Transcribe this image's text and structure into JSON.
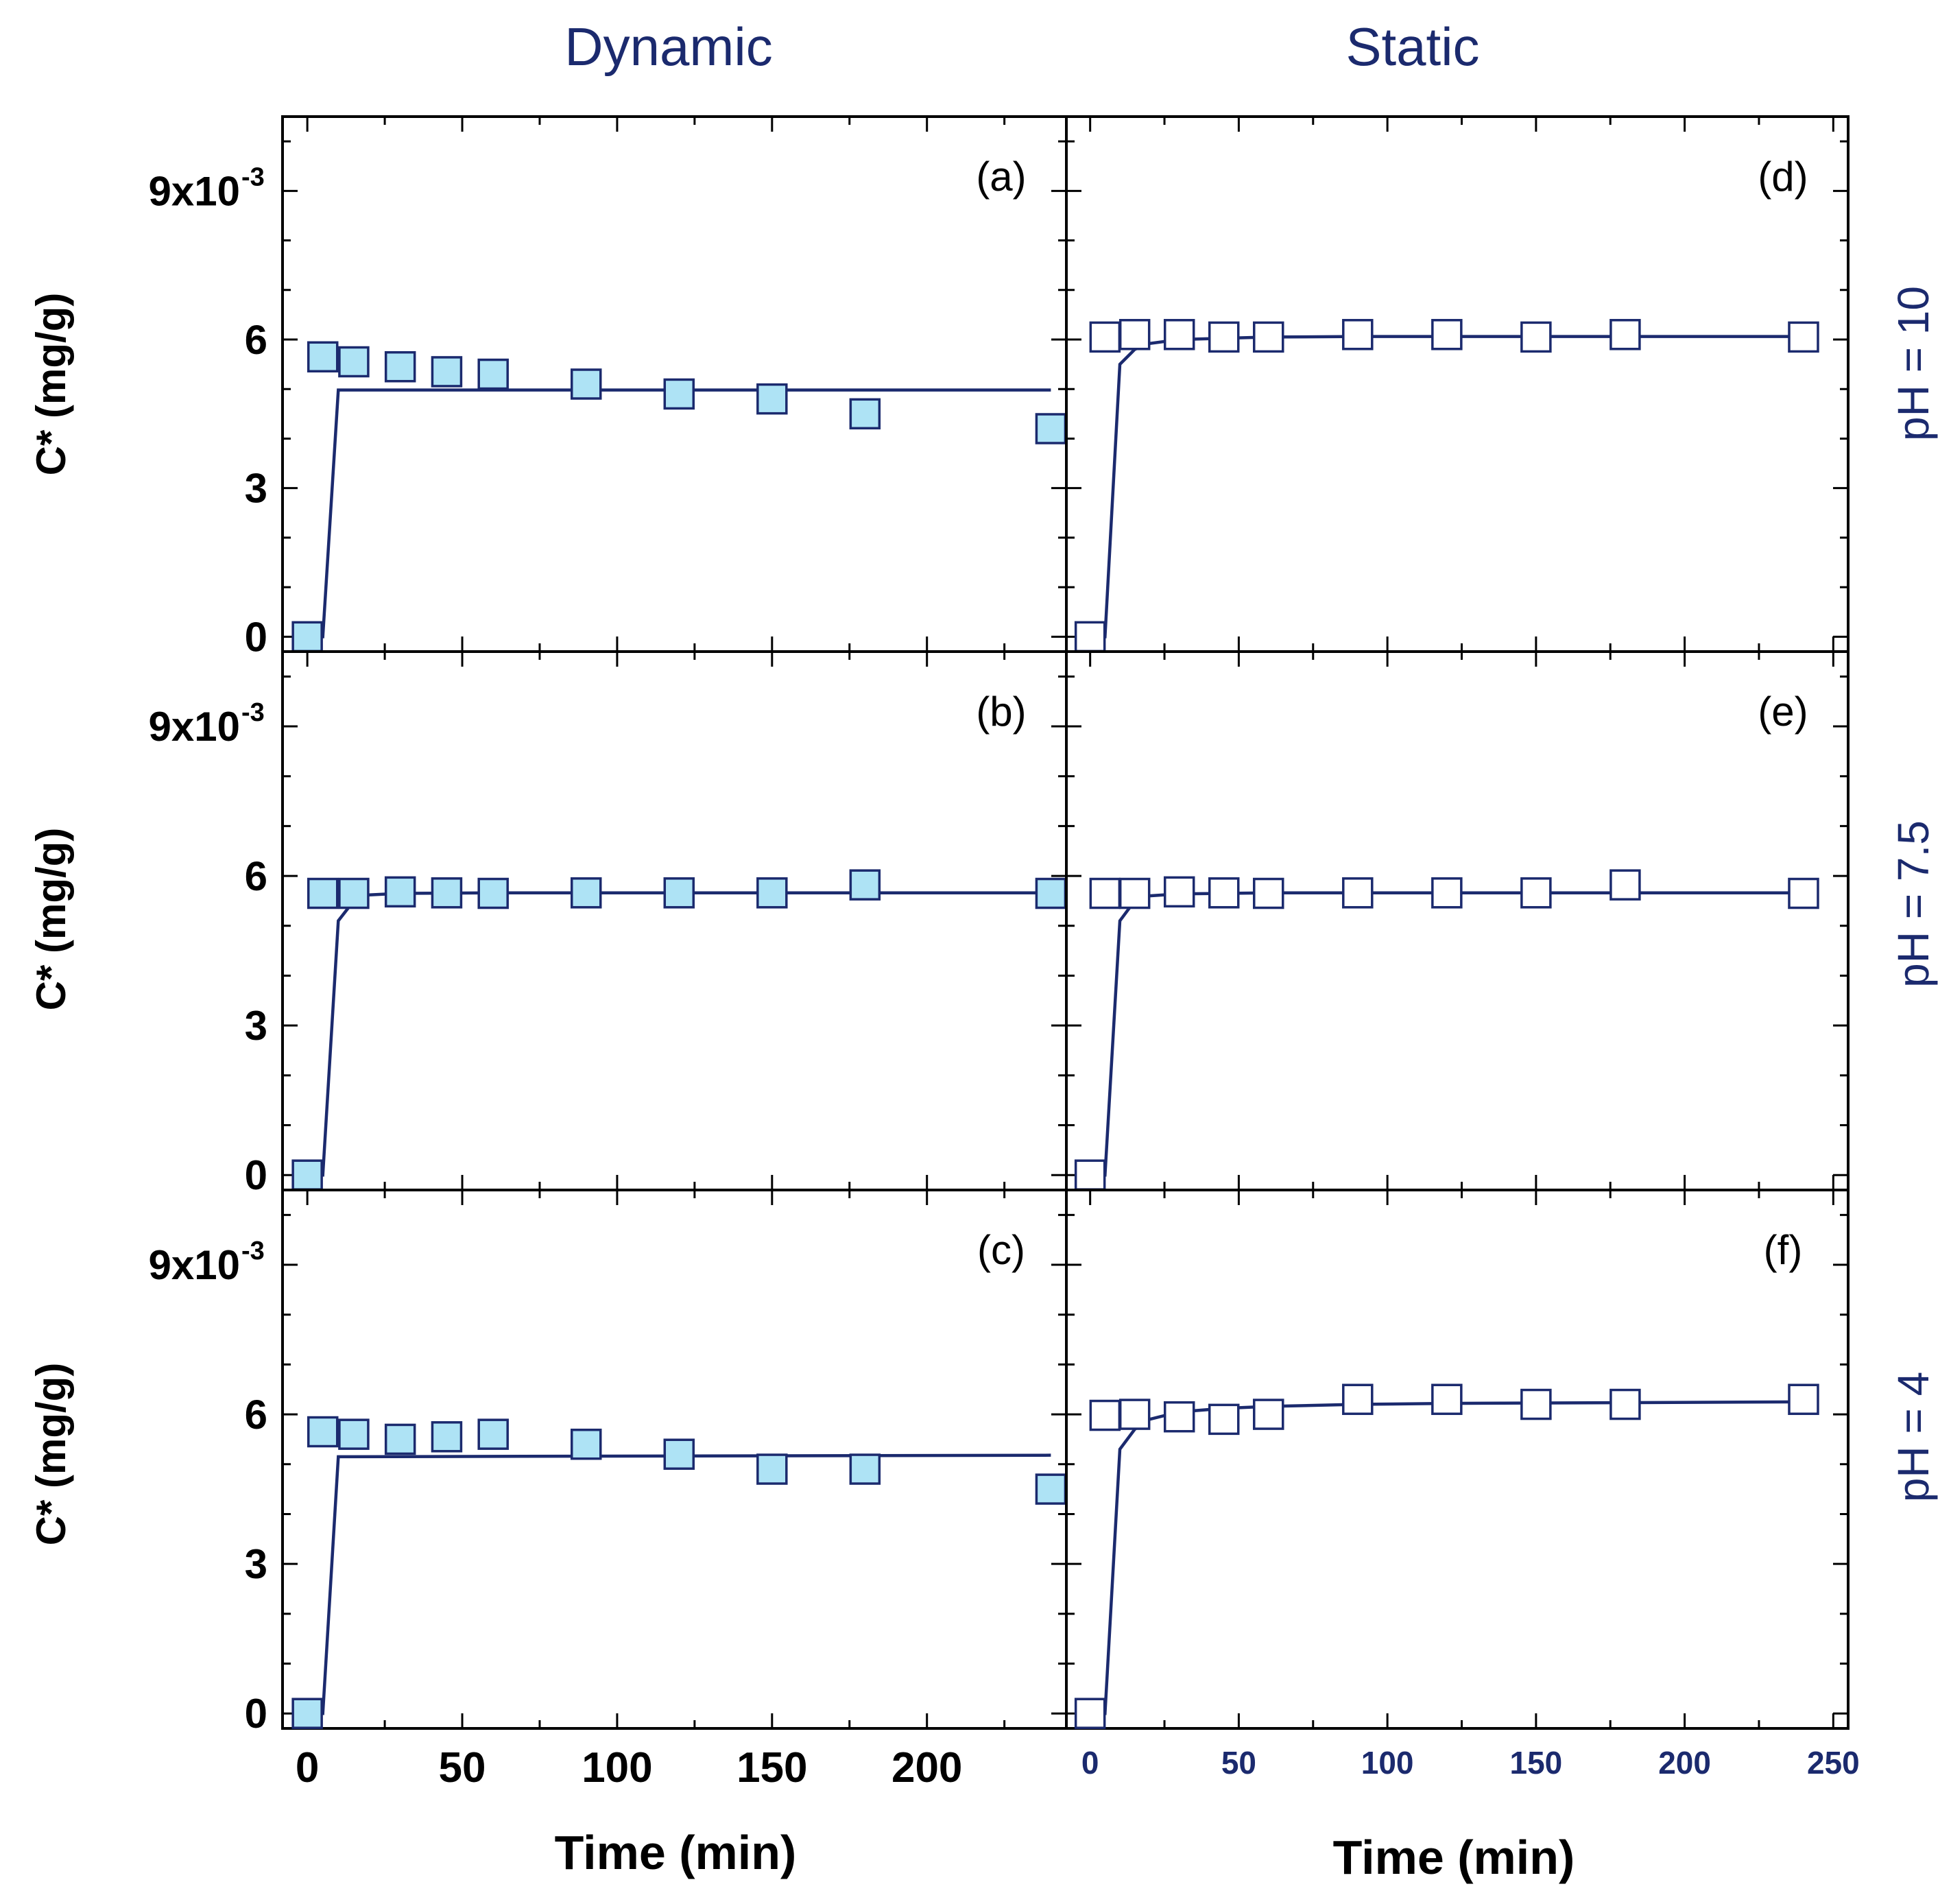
{
  "column_titles": [
    "Dynamic",
    "Static"
  ],
  "row_labels": [
    "pH = 10",
    "pH = 7.5",
    "pH = 4"
  ],
  "colors": {
    "axis": "#000000",
    "fit_line": "#1b2a6e",
    "marker_edge": "#1b2a6e",
    "dynamic_fill": "#aee3f5",
    "static_fill": "#ffffff",
    "title_text": "#1b2a6e"
  },
  "chart_data": [
    {
      "panel": "(a)",
      "type": "scatter",
      "column": "Dynamic",
      "row": "pH = 10",
      "xlabel": "",
      "ylabel": "C* (mg/g)",
      "xlim": [
        -8,
        245
      ],
      "ylim": [
        -0.0003,
        0.0105
      ],
      "yticks": [
        "0",
        "3",
        "6",
        "9x10"
      ],
      "ytick_exponent": "-3",
      "series": [
        {
          "name": "data",
          "x": [
            0,
            5,
            15,
            30,
            45,
            60,
            90,
            120,
            150,
            180,
            240
          ],
          "y": [
            0.0,
            0.00565,
            0.00555,
            0.00545,
            0.00535,
            0.0053,
            0.0051,
            0.0049,
            0.0048,
            0.0045,
            0.0042
          ]
        },
        {
          "name": "fit",
          "type": "line",
          "x": [
            0,
            5,
            10,
            240
          ],
          "y": [
            0.0,
            0.0,
            0.00498,
            0.00498
          ]
        }
      ]
    },
    {
      "panel": "(b)",
      "type": "scatter",
      "column": "Dynamic",
      "row": "pH = 7.5",
      "xlabel": "",
      "ylabel": "C* (mg/g)",
      "xlim": [
        -8,
        245
      ],
      "ylim": [
        -0.0003,
        0.0105
      ],
      "yticks": [
        "0",
        "3",
        "6",
        "9x10"
      ],
      "ytick_exponent": "-3",
      "series": [
        {
          "name": "data",
          "x": [
            0,
            5,
            15,
            30,
            45,
            60,
            90,
            120,
            150,
            180,
            240
          ],
          "y": [
            0.0,
            0.00565,
            0.00565,
            0.00568,
            0.00566,
            0.00565,
            0.00566,
            0.00566,
            0.00566,
            0.00582,
            0.00565
          ]
        },
        {
          "name": "fit",
          "type": "line",
          "x": [
            0,
            5,
            10,
            15,
            20,
            30,
            60,
            240
          ],
          "y": [
            0.0,
            0.0,
            0.0051,
            0.0055,
            0.00562,
            0.00565,
            0.00566,
            0.00566
          ]
        }
      ]
    },
    {
      "panel": "(c)",
      "type": "scatter",
      "column": "Dynamic",
      "row": "pH = 4",
      "xlabel": "Time (min)",
      "ylabel": "C* (mg/g)",
      "xlim": [
        -8,
        245
      ],
      "ylim": [
        -0.0003,
        0.0105
      ],
      "yticks": [
        "0",
        "3",
        "6",
        "9x10"
      ],
      "ytick_exponent": "-3",
      "xticks": [
        "0",
        "50",
        "100",
        "150",
        "200"
      ],
      "series": [
        {
          "name": "data",
          "x": [
            0,
            5,
            15,
            30,
            45,
            60,
            90,
            120,
            150,
            180,
            240
          ],
          "y": [
            0.0,
            0.00565,
            0.0056,
            0.0055,
            0.00555,
            0.0056,
            0.0054,
            0.0052,
            0.0049,
            0.0049,
            0.0045
          ]
        },
        {
          "name": "fit",
          "type": "line",
          "x": [
            0,
            5,
            10,
            240
          ],
          "y": [
            0.0,
            0.0,
            0.00515,
            0.00518
          ]
        }
      ]
    },
    {
      "panel": "(d)",
      "type": "scatter",
      "column": "Static",
      "row": "pH = 10",
      "xlabel": "",
      "ylabel": "",
      "xlim": [
        -8,
        255
      ],
      "ylim": [
        -0.0003,
        0.0105
      ],
      "series": [
        {
          "name": "data",
          "x": [
            0,
            5,
            15,
            30,
            45,
            60,
            90,
            120,
            150,
            180,
            240
          ],
          "y": [
            0.0,
            0.00605,
            0.0061,
            0.0061,
            0.00605,
            0.00605,
            0.0061,
            0.0061,
            0.00605,
            0.0061,
            0.00605
          ]
        },
        {
          "name": "fit",
          "type": "line",
          "x": [
            0,
            5,
            10,
            15,
            20,
            30,
            60,
            90,
            240
          ],
          "y": [
            0.0,
            0.0,
            0.0055,
            0.0058,
            0.00592,
            0.006,
            0.00605,
            0.00606,
            0.00606
          ]
        }
      ]
    },
    {
      "panel": "(e)",
      "type": "scatter",
      "column": "Static",
      "row": "pH = 7.5",
      "xlabel": "",
      "ylabel": "",
      "xlim": [
        -8,
        255
      ],
      "ylim": [
        -0.0003,
        0.0105
      ],
      "series": [
        {
          "name": "data",
          "x": [
            0,
            5,
            15,
            30,
            45,
            60,
            90,
            120,
            150,
            180,
            240
          ],
          "y": [
            0.0,
            0.00565,
            0.00565,
            0.00568,
            0.00566,
            0.00565,
            0.00566,
            0.00566,
            0.00566,
            0.00582,
            0.00565
          ]
        },
        {
          "name": "fit",
          "type": "line",
          "x": [
            0,
            5,
            10,
            15,
            20,
            30,
            60,
            240
          ],
          "y": [
            0.0,
            0.0,
            0.0051,
            0.0055,
            0.0056,
            0.00564,
            0.00566,
            0.00566
          ]
        }
      ]
    },
    {
      "panel": "(f)",
      "type": "scatter",
      "column": "Static",
      "row": "pH = 4",
      "xlabel": "Time (min)",
      "ylabel": "",
      "xlim": [
        -8,
        255
      ],
      "ylim": [
        -0.0003,
        0.0105
      ],
      "xticks": [
        "0",
        "50",
        "100",
        "150",
        "200",
        "250"
      ],
      "series": [
        {
          "name": "data",
          "x": [
            0,
            5,
            15,
            30,
            45,
            60,
            90,
            120,
            150,
            180,
            240
          ],
          "y": [
            0.0,
            0.00598,
            0.006,
            0.00595,
            0.0059,
            0.006,
            0.0063,
            0.0063,
            0.0062,
            0.0062,
            0.0063
          ]
        },
        {
          "name": "fit",
          "type": "line",
          "x": [
            0,
            5,
            10,
            15,
            20,
            30,
            45,
            60,
            90,
            120,
            240
          ],
          "y": [
            0.0,
            0.0,
            0.0053,
            0.0057,
            0.0059,
            0.00605,
            0.00612,
            0.00616,
            0.0062,
            0.00622,
            0.00625
          ]
        }
      ]
    }
  ]
}
